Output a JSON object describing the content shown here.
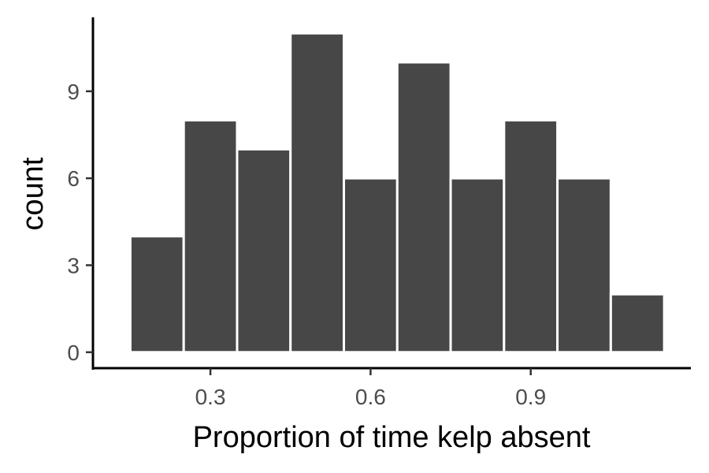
{
  "chart_data": {
    "type": "bar",
    "subtype": "histogram",
    "xlabel": "Proportion of time kelp absent",
    "ylabel": "count",
    "bin_width": 0.1,
    "bins": [
      {
        "x_start": 0.15,
        "x_end": 0.25,
        "count": 4
      },
      {
        "x_start": 0.25,
        "x_end": 0.35,
        "count": 8
      },
      {
        "x_start": 0.35,
        "x_end": 0.45,
        "count": 7
      },
      {
        "x_start": 0.45,
        "x_end": 0.55,
        "count": 11
      },
      {
        "x_start": 0.55,
        "x_end": 0.65,
        "count": 6
      },
      {
        "x_start": 0.65,
        "x_end": 0.75,
        "count": 10
      },
      {
        "x_start": 0.75,
        "x_end": 0.85,
        "count": 6
      },
      {
        "x_start": 0.85,
        "x_end": 0.95,
        "count": 8
      },
      {
        "x_start": 0.95,
        "x_end": 1.05,
        "count": 6
      },
      {
        "x_start": 1.05,
        "x_end": 1.15,
        "count": 2
      }
    ],
    "xlim": [
      0.08,
      1.2
    ],
    "ylim": [
      -0.55,
      11.55
    ],
    "x_ticks": [
      0.3,
      0.6,
      0.9
    ],
    "x_tick_labels": [
      "0.3",
      "0.6",
      "0.9"
    ],
    "y_ticks": [
      0,
      3,
      6,
      9
    ],
    "y_tick_labels": [
      "0",
      "3",
      "6",
      "9"
    ],
    "grid": false,
    "bar_color": "#474747",
    "bar_outline_color": "#ffffff"
  }
}
